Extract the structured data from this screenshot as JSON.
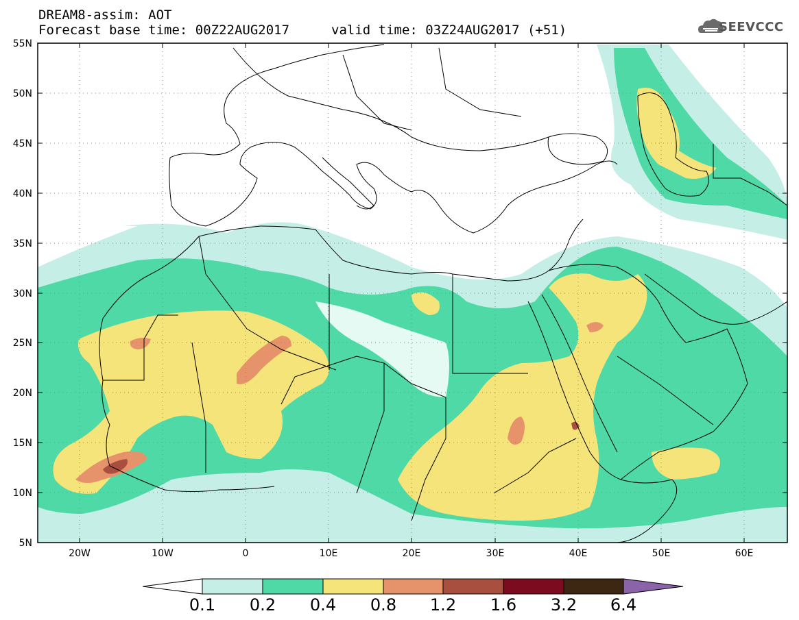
{
  "header": {
    "line1": "DREAM8-assim: AOT",
    "line2_base": "Forecast base time: 00Z22AUG2017",
    "line2_valid": "valid time: 03Z24AUG2017 (+51)"
  },
  "logo": {
    "text": "SEEVCCC",
    "icon": "cloud-icon"
  },
  "axes": {
    "lat_labels": [
      "55N",
      "50N",
      "45N",
      "40N",
      "35N",
      "30N",
      "25N",
      "20N",
      "15N",
      "10N",
      "5N"
    ],
    "lat_values": [
      55,
      50,
      45,
      40,
      35,
      30,
      25,
      20,
      15,
      10,
      5
    ],
    "lon_labels": [
      "20W",
      "10W",
      "0",
      "10E",
      "20E",
      "30E",
      "40E",
      "50E",
      "60E"
    ],
    "lon_values": [
      -20,
      -10,
      0,
      10,
      20,
      30,
      40,
      50,
      60
    ],
    "lon_range": [
      -25,
      65
    ],
    "lat_range": [
      5,
      55
    ]
  },
  "colorbar": {
    "labels": [
      "0.1",
      "0.2",
      "0.4",
      "0.8",
      "1.2",
      "1.6",
      "3.2",
      "6.4"
    ],
    "colors": [
      "#c4eee6",
      "#4fd9a6",
      "#f5e47a",
      "#e6926a",
      "#a84f3f",
      "#7d0b1f",
      "#3d2712",
      "#8a63a8"
    ],
    "extend_low_color": "#ffffff"
  },
  "colors": {
    "c1": "#c4eee6",
    "c2": "#4fd9a6",
    "c3": "#f5e47a",
    "c4": "#e6926a",
    "border": "#000000",
    "grid": "#888888"
  }
}
